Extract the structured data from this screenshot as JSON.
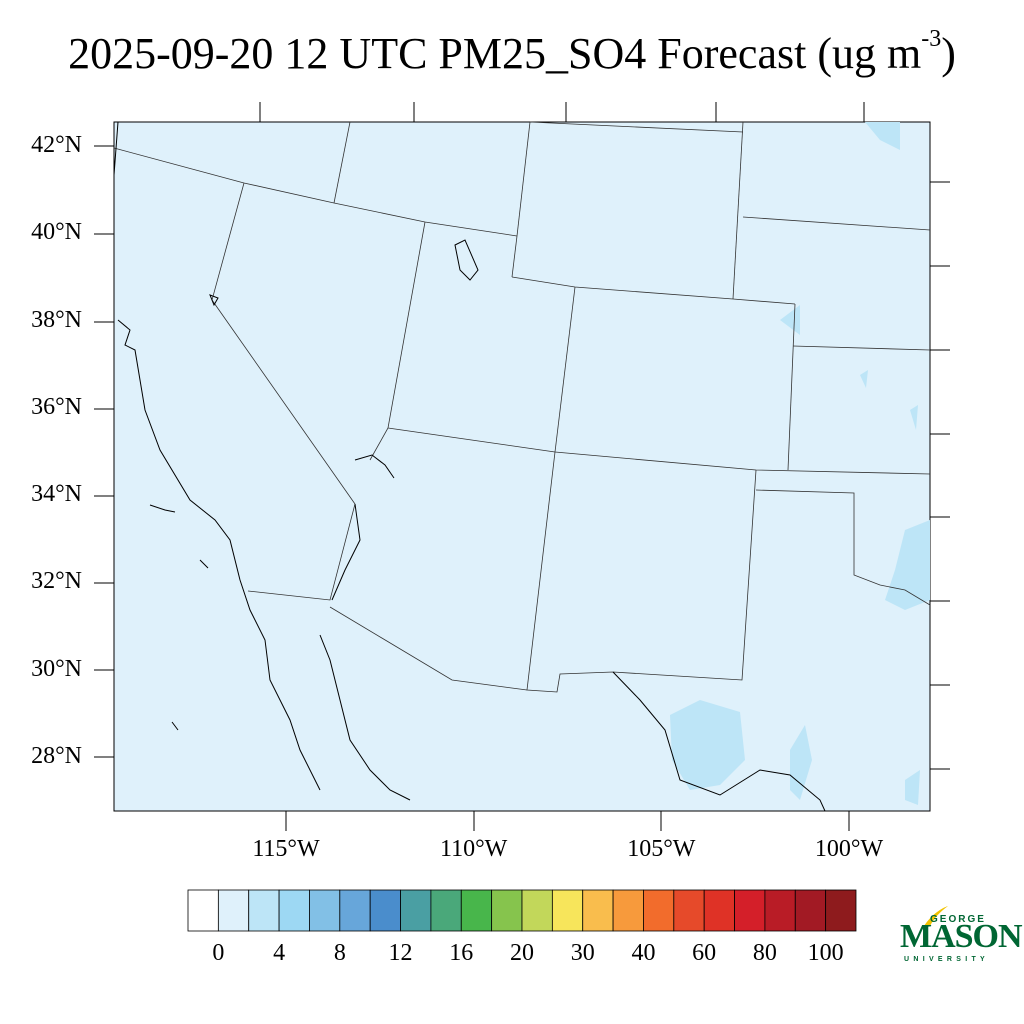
{
  "title": {
    "text": "2025-09-20 12 UTC PM25_SO4 Forecast (ug m",
    "sup": "-3",
    "close": ")"
  },
  "map": {
    "background_color": "#dff1fb",
    "lat_labels": [
      {
        "text": "42°N",
        "lat": 42
      },
      {
        "text": "40°N",
        "lat": 40
      },
      {
        "text": "38°N",
        "lat": 38
      },
      {
        "text": "36°N",
        "lat": 36
      },
      {
        "text": "34°N",
        "lat": 34
      },
      {
        "text": "32°N",
        "lat": 32
      },
      {
        "text": "30°N",
        "lat": 30
      },
      {
        "text": "28°N",
        "lat": 28
      }
    ],
    "lon_labels": [
      {
        "text": "115°W",
        "lon": -115
      },
      {
        "text": "110°W",
        "lon": -110
      },
      {
        "text": "105°W",
        "lon": -105
      },
      {
        "text": "100°W",
        "lon": -100
      }
    ]
  },
  "colorbar": {
    "colors": [
      "#ffffff",
      "#dff1fb",
      "#bde5f7",
      "#9dd8f3",
      "#82c0e6",
      "#67a6da",
      "#4a8dcc",
      "#4a9fa3",
      "#4aa87a",
      "#48b64b",
      "#86c44d",
      "#c2d75a",
      "#f7e55b",
      "#f9bd4d",
      "#f79a3c",
      "#f26c2c",
      "#e64a2a",
      "#df3226",
      "#d41f29",
      "#b91c26",
      "#a21a24",
      "#8e1b1d"
    ],
    "labels": [
      "0",
      "4",
      "8",
      "12",
      "16",
      "20",
      "30",
      "40",
      "60",
      "80",
      "100"
    ]
  },
  "logo": {
    "line1": "GEORGE",
    "line2": "MASON",
    "line3": "UNIVERSITY"
  }
}
